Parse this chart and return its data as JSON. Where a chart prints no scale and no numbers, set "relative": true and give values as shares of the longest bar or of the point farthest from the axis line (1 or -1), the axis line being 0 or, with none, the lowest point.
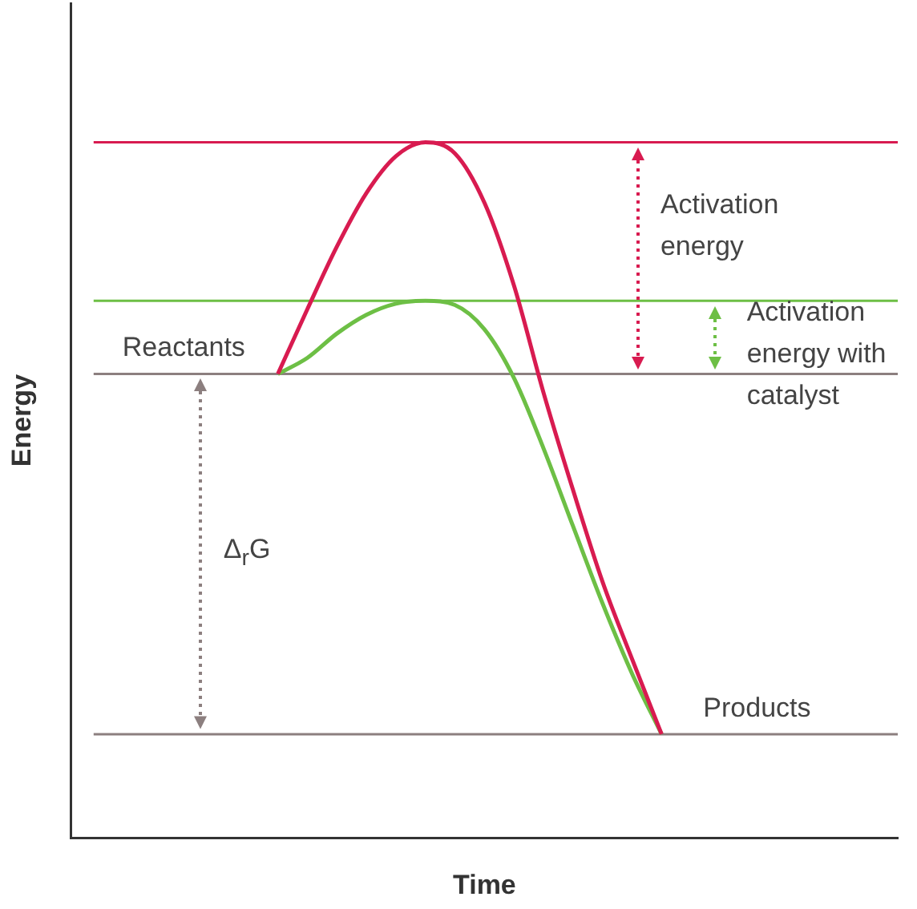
{
  "chart_data": {
    "type": "line",
    "relative": true,
    "xlabel": "Time",
    "ylabel": "Energy",
    "categories": [
      null,
      null,
      null,
      null,
      null,
      null,
      null,
      null,
      null,
      null,
      null,
      null,
      null,
      null,
      null,
      null,
      null,
      null,
      null,
      null,
      null,
      null,
      null,
      null,
      null,
      null,
      null,
      null,
      null
    ],
    "series": [
      {
        "color": "#d81b50",
        "values": [
          null,
          null,
          null,
          null,
          null,
          null,
          null,
          0.667,
          0.76,
          0.85,
          0.927,
          0.98,
          1,
          0.984,
          0.913,
          0.794,
          0.64,
          0.5,
          0.368,
          0.257,
          0.149,
          null,
          null,
          null,
          null,
          null,
          null,
          null,
          null
        ]
      },
      {
        "color": "#6dbf45",
        "values": [
          null,
          null,
          null,
          null,
          null,
          null,
          null,
          0.667,
          0.69,
          0.725,
          0.752,
          0.768,
          0.772,
          0.766,
          0.731,
          0.661,
          0.56,
          0.448,
          0.337,
          0.236,
          0.149,
          null,
          null,
          null,
          null,
          null,
          null,
          null,
          null
        ]
      }
    ],
    "ref_lines": [
      {
        "axis": "y",
        "value": 1,
        "color": "#d81b50"
      },
      {
        "axis": "y",
        "value": 0.772,
        "color": "#6dbf45"
      },
      {
        "axis": "y",
        "value": 0.667,
        "label": "Reactants",
        "color": "#8c7f7f"
      },
      {
        "axis": "y",
        "value": 0.149,
        "label": "Products",
        "color": "#8c7f7f"
      }
    ],
    "annotations": [
      "Activation energy",
      "Activation energy with catalyst",
      "Δ$_{r}$G"
    ],
    "grid": false,
    "legend": false,
    "marker": "none",
    "line_style": "solid"
  }
}
